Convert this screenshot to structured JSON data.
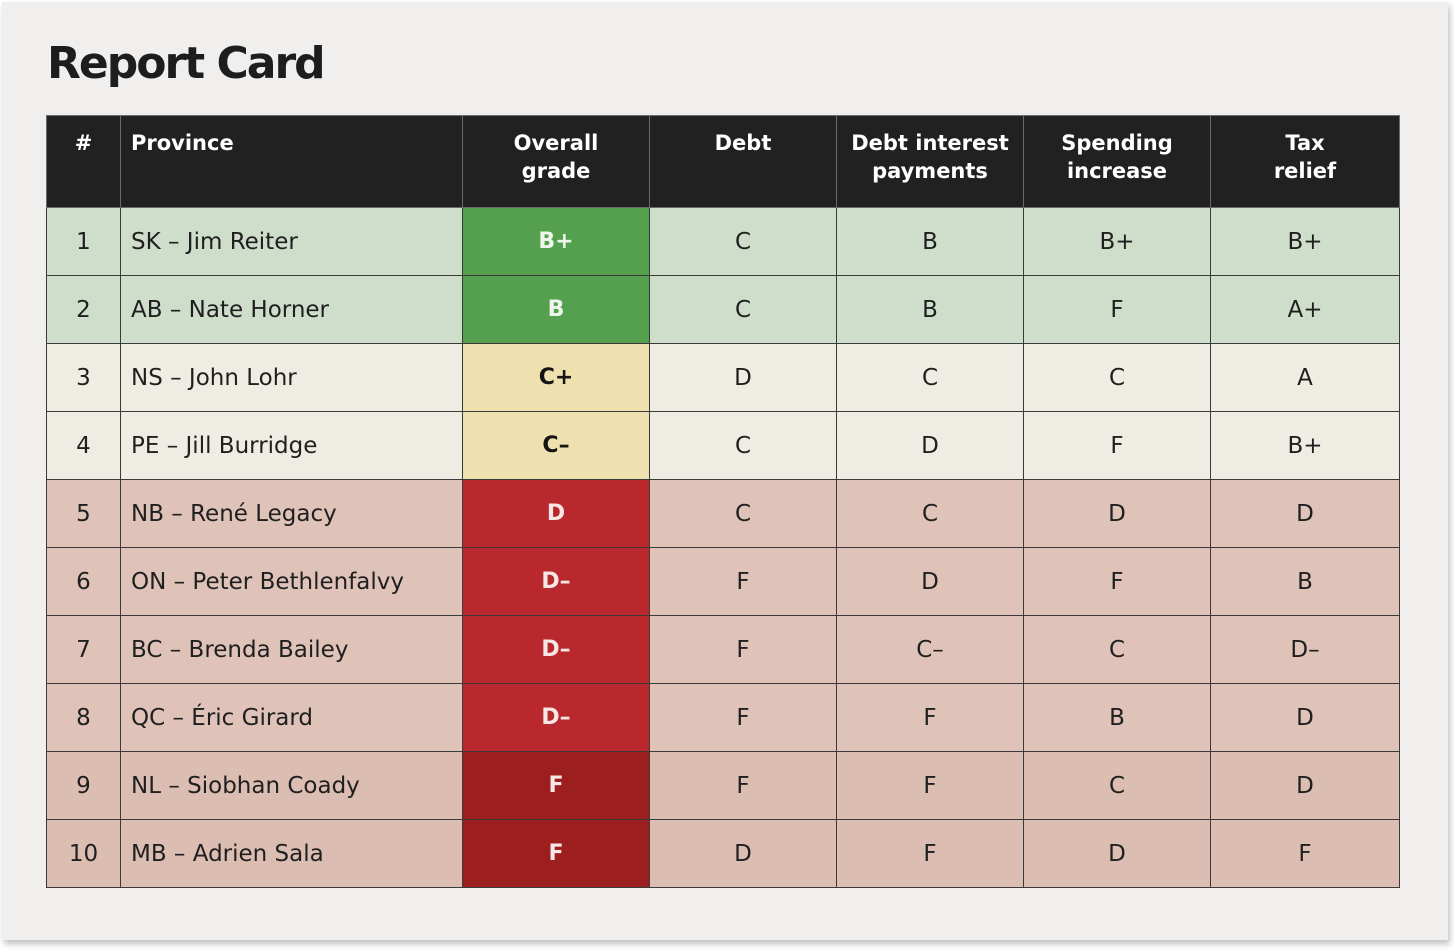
{
  "title": "Report Card",
  "chart_data": {
    "type": "table",
    "title": "Report Card",
    "columns": [
      "#",
      "Province",
      "Overall grade",
      "Debt",
      "Debt interest payments",
      "Spending increase",
      "Tax relief"
    ],
    "header_lines": [
      [
        "#"
      ],
      [
        "Province"
      ],
      [
        "Overall",
        "grade"
      ],
      [
        "Debt"
      ],
      [
        "Debt interest",
        "payments"
      ],
      [
        "Spending",
        "increase"
      ],
      [
        "Tax",
        "relief"
      ]
    ],
    "rows": [
      {
        "rank": "1",
        "province": "SK – Jim Reiter",
        "overall": "B+",
        "debt": "C",
        "interest": "B",
        "spending": "B+",
        "tax": "B+",
        "tier": "green"
      },
      {
        "rank": "2",
        "province": "AB – Nate Horner",
        "overall": "B",
        "debt": "C",
        "interest": "B",
        "spending": "F",
        "tax": "A+",
        "tier": "green"
      },
      {
        "rank": "3",
        "province": "NS – John Lohr",
        "overall": "C+",
        "debt": "D",
        "interest": "C",
        "spending": "C",
        "tax": "A",
        "tier": "yellow"
      },
      {
        "rank": "4",
        "province": "PE – Jill Burridge",
        "overall": "C–",
        "debt": "C",
        "interest": "D",
        "spending": "F",
        "tax": "B+",
        "tier": "yellow"
      },
      {
        "rank": "5",
        "province": "NB – René Legacy",
        "overall": "D",
        "debt": "C",
        "interest": "C",
        "spending": "D",
        "tax": "D",
        "tier": "red"
      },
      {
        "rank": "6",
        "province": "ON – Peter Bethlenfalvy",
        "overall": "D–",
        "debt": "F",
        "interest": "D",
        "spending": "F",
        "tax": "B",
        "tier": "red"
      },
      {
        "rank": "7",
        "province": "BC – Brenda Bailey",
        "overall": "D–",
        "debt": "F",
        "interest": "C–",
        "spending": "C",
        "tax": "D–",
        "tier": "red"
      },
      {
        "rank": "8",
        "province": "QC – Éric Girard",
        "overall": "D–",
        "debt": "F",
        "interest": "F",
        "spending": "B",
        "tax": "D",
        "tier": "red"
      },
      {
        "rank": "9",
        "province": "NL – Siobhan Coady",
        "overall": "F",
        "debt": "F",
        "interest": "F",
        "spending": "C",
        "tax": "D",
        "tier": "dark"
      },
      {
        "rank": "10",
        "province": "MB – Adrien Sala",
        "overall": "F",
        "debt": "D",
        "interest": "F",
        "spending": "D",
        "tax": "F",
        "tier": "dark"
      }
    ]
  },
  "colors": {
    "header_bg": "#212121",
    "green_row": "#cfddcb",
    "yellow_row": "#efece3",
    "red_row": "#e0c3b8",
    "overall_green": "#55a04f",
    "overall_yellow": "#efe0b0",
    "overall_red": "#b8282d",
    "overall_dark_red": "#9c1e1f"
  }
}
